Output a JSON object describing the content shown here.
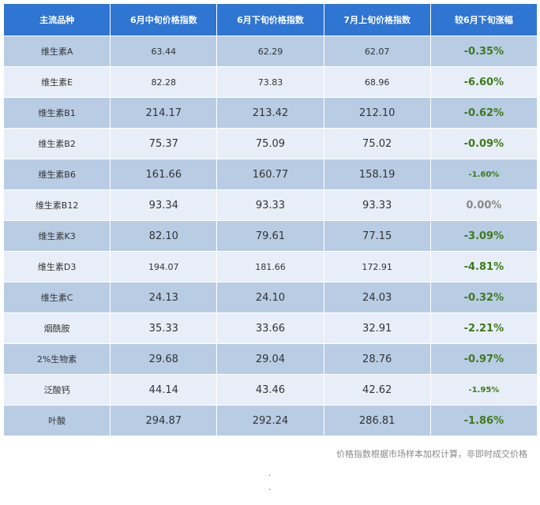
{
  "headers": [
    "主流品种",
    "6月中旬价格指数",
    "6月下旬价格指数",
    "7月上旬价格指数",
    "较6月下旬涨幅"
  ],
  "rows": [
    {
      "name": "维生素A",
      "mid_jun": "63.44",
      "late_jun": "62.29",
      "early_jul": "62.07",
      "change": "-0.35%"
    },
    {
      "name": "维生素E",
      "mid_jun": "82.28",
      "late_jun": "73.83",
      "early_jul": "68.96",
      "change": "-6.60%"
    },
    {
      "name": "维生素B1",
      "mid_jun": "214.17",
      "late_jun": "213.42",
      "early_jul": "212.10",
      "change": "-0.62%"
    },
    {
      "name": "维生素B2",
      "mid_jun": "75.37",
      "late_jun": "75.09",
      "early_jul": "75.02",
      "change": "-0.09%"
    },
    {
      "name": "维生素B6",
      "mid_jun": "161.66",
      "late_jun": "160.77",
      "early_jul": "158.19",
      "change": "-1.60%"
    },
    {
      "name": "维生素B12",
      "mid_jun": "93.34",
      "late_jun": "93.33",
      "early_jul": "93.33",
      "change": "0.00%"
    },
    {
      "name": "维生素K3",
      "mid_jun": "82.10",
      "late_jun": "79.61",
      "early_jul": "77.15",
      "change": "-3.09%"
    },
    {
      "name": "维生素D3",
      "mid_jun": "194.07",
      "late_jun": "181.66",
      "early_jul": "172.91",
      "change": "-4.81%"
    },
    {
      "name": "维生素C",
      "mid_jun": "24.13",
      "late_jun": "24.10",
      "early_jul": "24.03",
      "change": "-0.32%"
    },
    {
      "name": "烟酰胺",
      "mid_jun": "35.33",
      "late_jun": "33.66",
      "early_jul": "32.91",
      "change": "-2.21%"
    },
    {
      "name": "2%生物素",
      "mid_jun": "29.68",
      "late_jun": "29.04",
      "early_jul": "28.76",
      "change": "-0.97%"
    },
    {
      "name": "泛酸钙",
      "mid_jun": "44.14",
      "late_jun": "43.46",
      "early_jul": "42.62",
      "change": "-1.95%"
    },
    {
      "name": "叶酸",
      "mid_jun": "294.87",
      "late_jun": "292.24",
      "early_jul": "286.81",
      "change": "-1.86%"
    }
  ],
  "note": "价格指数根据市场样本加权计算，非即时成交价格",
  "dots": [
    ".",
    "."
  ],
  "colors": {
    "header_bg": "#2f75d2",
    "row_dark": "#b8cce4",
    "row_light": "#e8eef7",
    "change_text": "#3e7a1c",
    "zero_change_text": "#8a8a8a"
  }
}
